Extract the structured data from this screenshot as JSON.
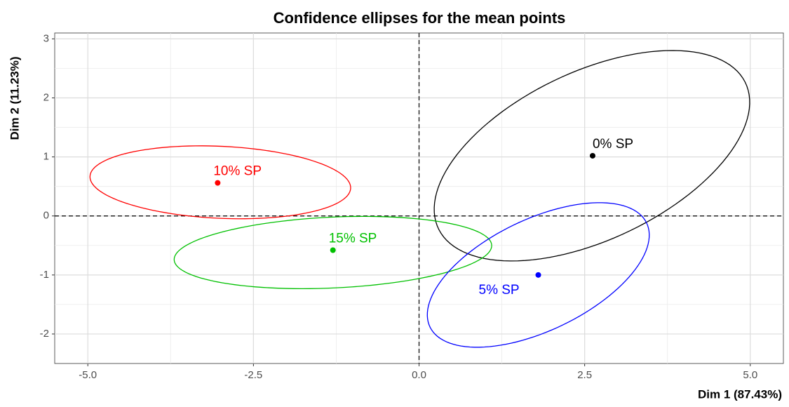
{
  "chart_data": {
    "type": "scatter",
    "title": "Confidence ellipses for the mean points",
    "x_label": "Dim 1 (87.43%)",
    "y_label": "Dim 2 (11.23%)",
    "xlim": [
      -5.5,
      5.5
    ],
    "ylim": [
      -2.5,
      3.1
    ],
    "xticks": [
      {
        "value": -5,
        "label": "-5.0"
      },
      -2.5,
      {
        "value": 0,
        "label": "0.0"
      },
      2.5,
      {
        "value": 5,
        "label": "5.0"
      }
    ],
    "yticks": [
      -2,
      -1,
      0,
      1,
      2,
      3
    ],
    "grid": true,
    "series": [
      {
        "name": "0% SP",
        "color": "#000000",
        "x": 2.62,
        "y": 1.02,
        "ellipse": {
          "cx": 2.61,
          "cy": 1.02,
          "a": 2.63,
          "b": 1.39,
          "angle": 30
        }
      },
      {
        "name": "10% SP",
        "color": "#ff0000",
        "x": -3.04,
        "y": 0.56,
        "ellipse": {
          "cx": -3.0,
          "cy": 0.57,
          "a": 1.97,
          "b": 0.61,
          "angle": -3
        }
      },
      {
        "name": "15% SP",
        "color": "#00c000",
        "x": -1.3,
        "y": -0.58,
        "ellipse": {
          "cx": -1.3,
          "cy": -0.62,
          "a": 2.4,
          "b": 0.6,
          "angle": 3
        }
      },
      {
        "name": "5% SP",
        "color": "#0000ff",
        "x": 1.8,
        "y": -1.0,
        "ellipse": {
          "cx": 1.8,
          "cy": -1.0,
          "a": 1.86,
          "b": 0.92,
          "angle": 30
        }
      }
    ]
  }
}
